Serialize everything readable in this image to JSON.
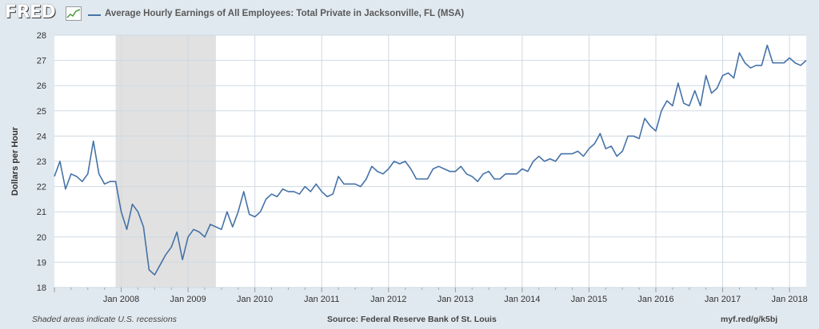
{
  "header": {
    "logo_text": "FRED",
    "series_title": "Average Hourly Earnings of All Employees: Total Private in Jacksonville, FL (MSA)"
  },
  "footer": {
    "recession_note": "Shaded areas indicate U.S. recessions",
    "source": "Source: Federal Reserve Bank of St. Louis",
    "short_url": "myf.red/g/k5bj"
  },
  "colors": {
    "line": "#4572a7",
    "recession_shade": "#e1e1e1",
    "grid": "#cfd9e1"
  },
  "chart_data": {
    "type": "line",
    "title": "Average Hourly Earnings of All Employees: Total Private in Jacksonville, FL (MSA)",
    "ylabel": "Dollars per Hour",
    "xlabel": "",
    "ylim": [
      18,
      28
    ],
    "yticks": [
      18,
      19,
      20,
      21,
      22,
      23,
      24,
      25,
      26,
      27,
      28
    ],
    "xticks": [
      "Jan 2008",
      "Jan 2009",
      "Jan 2010",
      "Jan 2011",
      "Jan 2012",
      "Jan 2013",
      "Jan 2014",
      "Jan 2015",
      "Jan 2016",
      "Jan 2017",
      "Jan 2018"
    ],
    "xlim": [
      "2007-01",
      "2018-04"
    ],
    "grid": true,
    "recessions": [
      {
        "start": "2007-12",
        "end": "2009-06"
      }
    ],
    "series": [
      {
        "start": "2007-01",
        "frequency": "monthly",
        "values": [
          22.4,
          23.0,
          21.9,
          22.5,
          22.4,
          22.2,
          22.5,
          23.8,
          22.5,
          22.1,
          22.2,
          22.2,
          21.0,
          20.3,
          21.3,
          21.0,
          20.4,
          18.7,
          18.5,
          18.9,
          19.3,
          19.6,
          20.2,
          19.1,
          20.0,
          20.3,
          20.2,
          20.0,
          20.5,
          20.4,
          20.3,
          21.0,
          20.4,
          21.0,
          21.8,
          20.9,
          20.8,
          21.0,
          21.5,
          21.7,
          21.6,
          21.9,
          21.8,
          21.8,
          21.7,
          22.0,
          21.8,
          22.1,
          21.8,
          21.6,
          21.7,
          22.4,
          22.1,
          22.1,
          22.1,
          22.0,
          22.3,
          22.8,
          22.6,
          22.5,
          22.7,
          23.0,
          22.9,
          23.0,
          22.7,
          22.3,
          22.3,
          22.3,
          22.7,
          22.8,
          22.7,
          22.6,
          22.6,
          22.8,
          22.5,
          22.4,
          22.2,
          22.5,
          22.6,
          22.3,
          22.3,
          22.5,
          22.5,
          22.5,
          22.7,
          22.6,
          23.0,
          23.2,
          23.0,
          23.1,
          23.0,
          23.3,
          23.3,
          23.3,
          23.4,
          23.2,
          23.5,
          23.7,
          24.1,
          23.5,
          23.6,
          23.2,
          23.4,
          24.0,
          24.0,
          23.9,
          24.7,
          24.4,
          24.2,
          25.0,
          25.4,
          25.2,
          26.1,
          25.3,
          25.2,
          25.8,
          25.2,
          26.4,
          25.7,
          25.9,
          26.4,
          26.5,
          26.3,
          27.3,
          26.9,
          26.7,
          26.8,
          26.8,
          27.6,
          26.9,
          26.9,
          26.9,
          27.1,
          26.9,
          26.8,
          27.0
        ]
      }
    ]
  }
}
